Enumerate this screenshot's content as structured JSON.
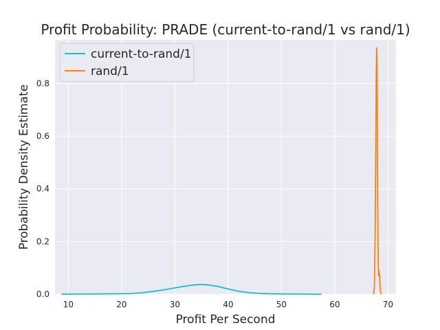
{
  "chart_data": {
    "type": "line",
    "title": "Profit Probability: PRADE (current-to-rand/1 vs rand/1)",
    "xlabel": "Profit Per Second",
    "ylabel": "Probability Density Estimate",
    "xlim": [
      7.5,
      71.5
    ],
    "ylim": [
      0.0,
      0.965
    ],
    "xticks": [
      10,
      20,
      30,
      40,
      50,
      60,
      70
    ],
    "yticks": [
      0.0,
      0.2,
      0.4,
      0.6,
      0.8
    ],
    "ytick_labels": [
      "0.0",
      "0.2",
      "0.4",
      "0.6",
      "0.8"
    ],
    "grid": true,
    "background": "#eaeaf2",
    "legend_position": "top-left",
    "series": [
      {
        "name": "current-to-rand/1",
        "color": "#17becf",
        "x": [
          8.7,
          12,
          16,
          20,
          22,
          24,
          26,
          28,
          30,
          32,
          34,
          35,
          36,
          38,
          40,
          42,
          44,
          46,
          48,
          50,
          54,
          57.5
        ],
        "y": [
          0.0005,
          0.0006,
          0.0012,
          0.002,
          0.003,
          0.006,
          0.011,
          0.017,
          0.024,
          0.031,
          0.036,
          0.037,
          0.036,
          0.03,
          0.02,
          0.011,
          0.006,
          0.003,
          0.0018,
          0.0012,
          0.0006,
          0.0003
        ]
      },
      {
        "name": "rand/1",
        "color": "#ff7f0e",
        "x": [
          67.3,
          67.45,
          67.6,
          67.72,
          67.8,
          67.88,
          67.95,
          68.02,
          68.1,
          68.18,
          68.24,
          68.3,
          68.36,
          68.42,
          68.5,
          68.6,
          68.7
        ],
        "y": [
          0.0,
          0.03,
          0.25,
          0.6,
          0.85,
          0.935,
          0.85,
          0.55,
          0.25,
          0.1,
          0.07,
          0.09,
          0.07,
          0.075,
          0.03,
          0.01,
          0.0
        ]
      }
    ]
  }
}
